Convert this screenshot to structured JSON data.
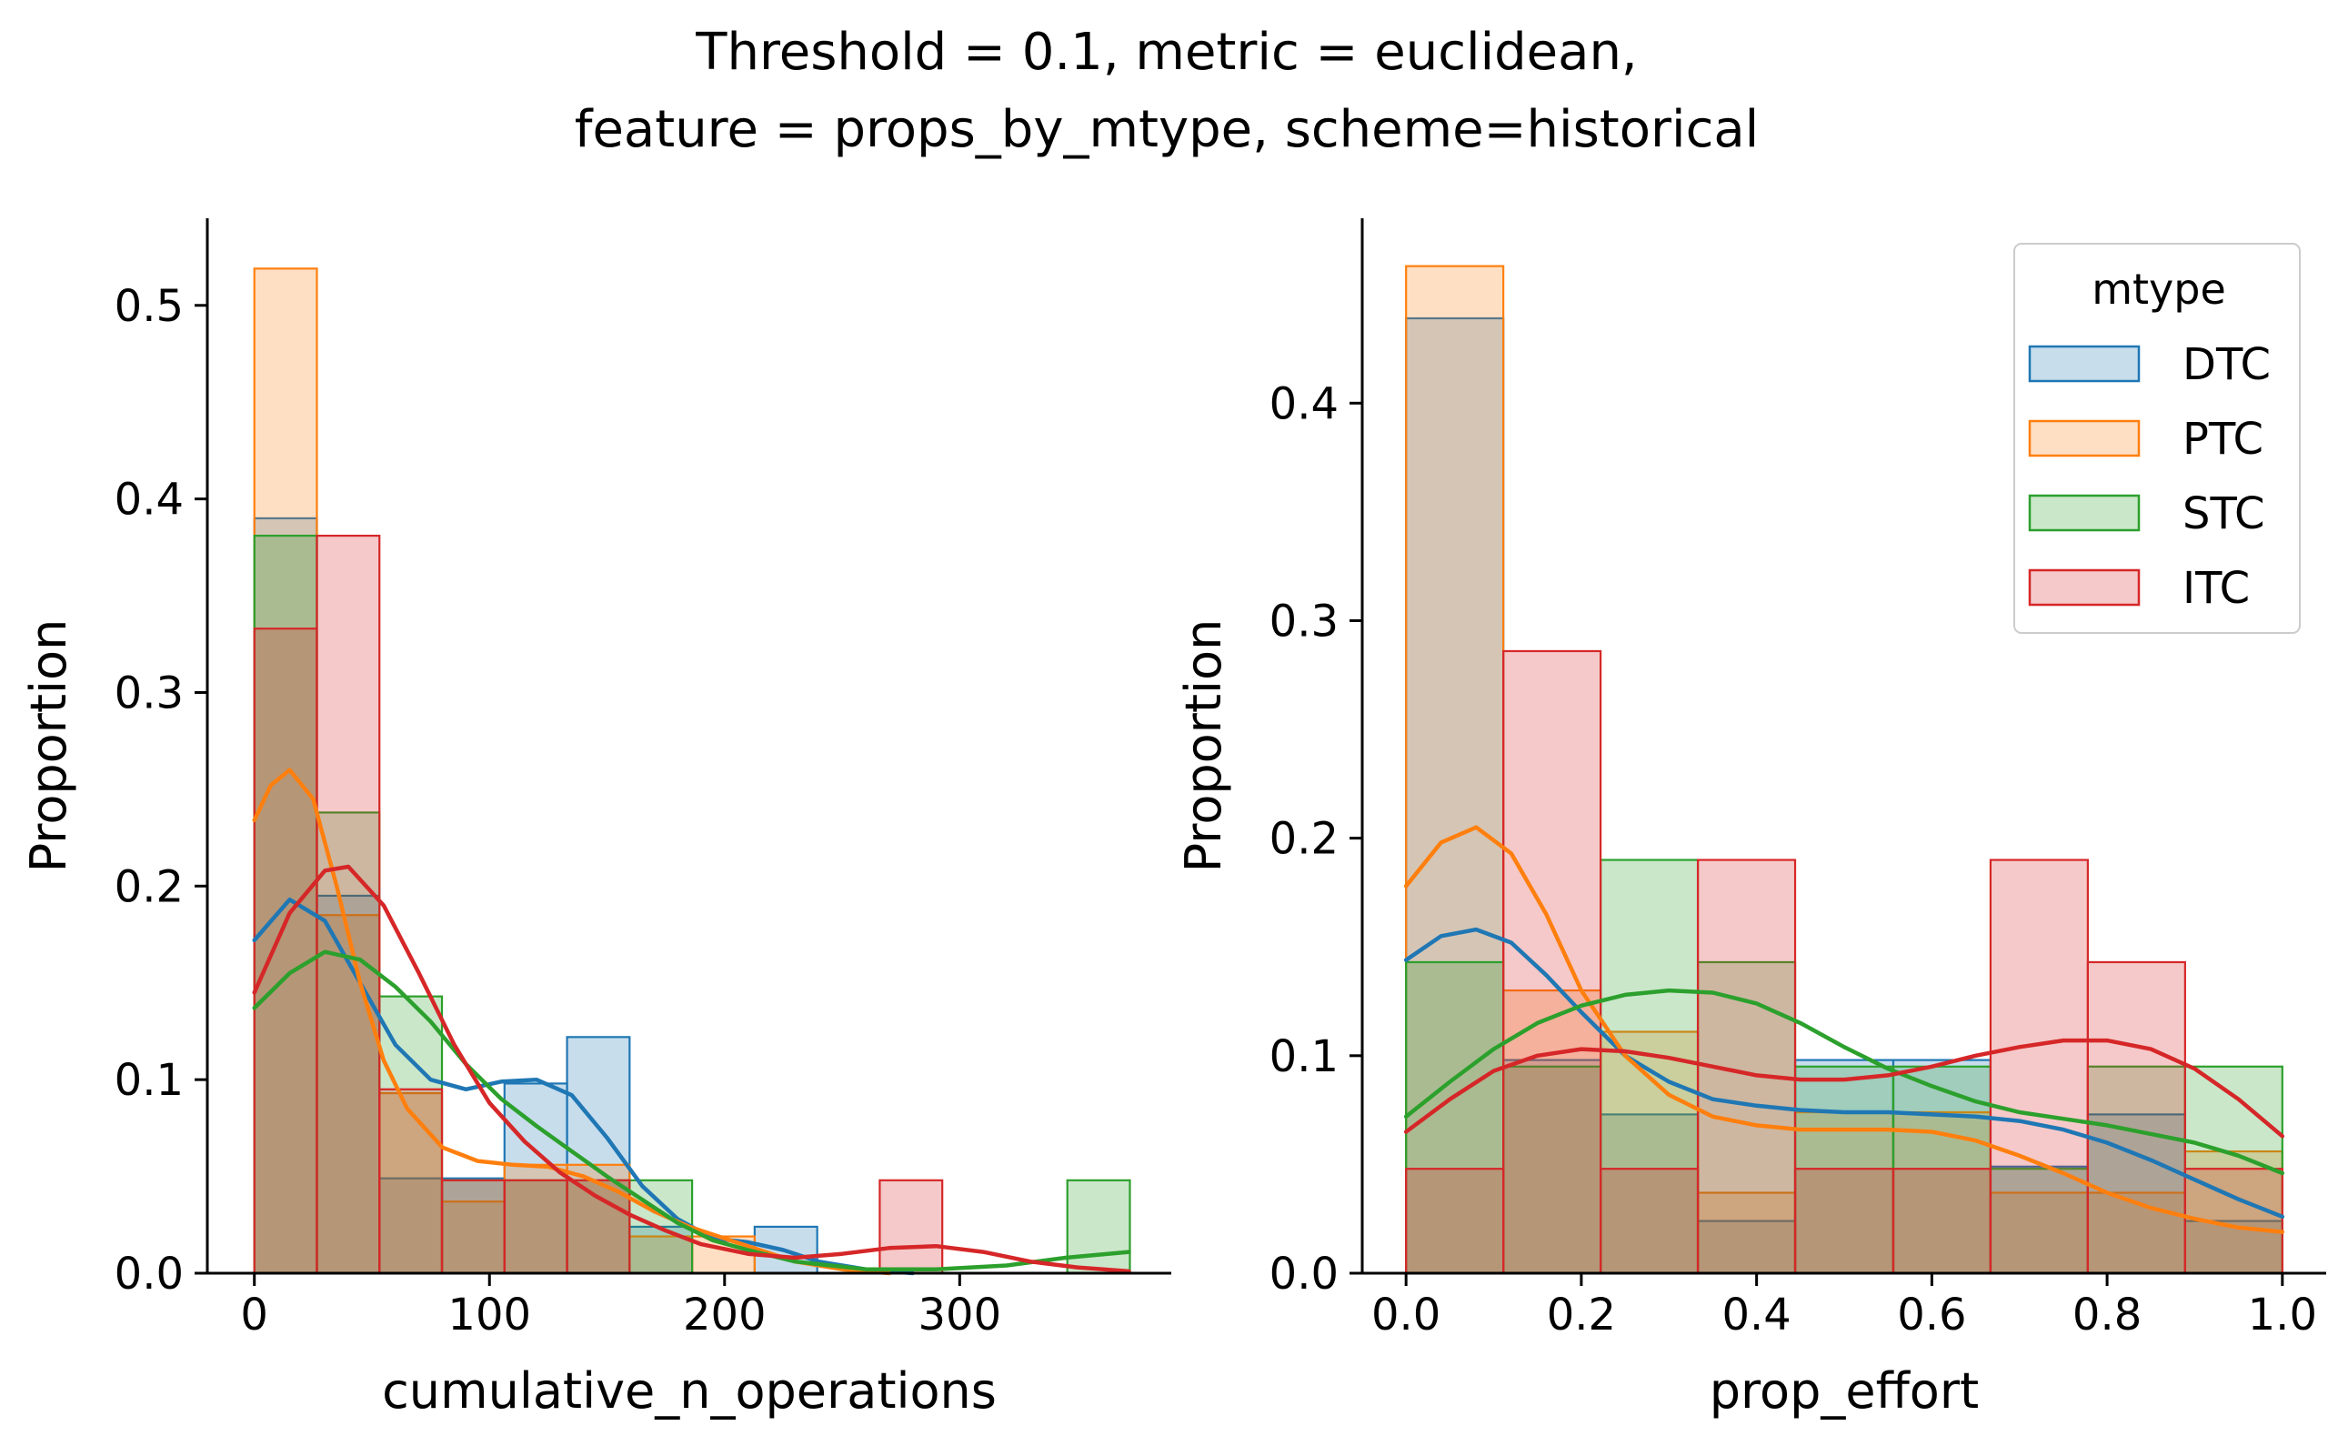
{
  "title": {
    "line1": "Threshold = 0.1, metric = euclidean,",
    "line2": "feature = props_by_mtype, scheme=historical"
  },
  "legend": {
    "title": "mtype",
    "placement": "upper right of right panel",
    "entries": [
      {
        "label": "DTC",
        "color": "#1f77b4"
      },
      {
        "label": "PTC",
        "color": "#ff7f0e"
      },
      {
        "label": "STC",
        "color": "#2ca02c"
      },
      {
        "label": "ITC",
        "color": "#d62728"
      }
    ]
  },
  "chart_data": [
    {
      "type": "histogram",
      "xlabel": "cumulative_n_operations",
      "ylabel": "Proportion",
      "xlim": [
        -20,
        390
      ],
      "ylim": [
        0,
        0.545
      ],
      "xticks": [
        0,
        100,
        200,
        300
      ],
      "xtick_labels": [
        "0",
        "100",
        "200",
        "300"
      ],
      "yticks": [
        0,
        0.1,
        0.2,
        0.3,
        0.4,
        0.5
      ],
      "ytick_labels": [
        "0.0",
        "0.1",
        "0.2",
        "0.3",
        "0.4",
        "0.5"
      ],
      "bin_edges": [
        0,
        26.6,
        53.2,
        79.8,
        106.4,
        133,
        159.6,
        186.2,
        212.8,
        239.4,
        266,
        292.6,
        319.2,
        345.8,
        372.4
      ],
      "series": [
        {
          "name": "DTC",
          "color": "#1f77b4",
          "values": [
            0.39,
            0.195,
            0.049,
            0.049,
            0.098,
            0.122,
            0.024,
            0.0,
            0.024,
            0.0,
            0.0,
            0.0,
            0.0,
            0.0
          ],
          "kde": [
            [
              0,
              0.172
            ],
            [
              15,
              0.193
            ],
            [
              30,
              0.182
            ],
            [
              45,
              0.15
            ],
            [
              60,
              0.118
            ],
            [
              75,
              0.1
            ],
            [
              90,
              0.095
            ],
            [
              105,
              0.099
            ],
            [
              120,
              0.1
            ],
            [
              135,
              0.092
            ],
            [
              150,
              0.07
            ],
            [
              165,
              0.045
            ],
            [
              180,
              0.028
            ],
            [
              195,
              0.018
            ],
            [
              210,
              0.016
            ],
            [
              225,
              0.012
            ],
            [
              240,
              0.006
            ],
            [
              260,
              0.002
            ],
            [
              280,
              0.0
            ]
          ]
        },
        {
          "name": "PTC",
          "color": "#ff7f0e",
          "values": [
            0.519,
            0.185,
            0.093,
            0.037,
            0.056,
            0.056,
            0.019,
            0.019,
            0.0,
            0.0,
            0.0,
            0.0,
            0.0,
            0.0
          ],
          "kde": [
            [
              0,
              0.234
            ],
            [
              7,
              0.252
            ],
            [
              15,
              0.26
            ],
            [
              25,
              0.245
            ],
            [
              35,
              0.2
            ],
            [
              45,
              0.15
            ],
            [
              55,
              0.11
            ],
            [
              65,
              0.085
            ],
            [
              80,
              0.065
            ],
            [
              95,
              0.058
            ],
            [
              110,
              0.056
            ],
            [
              125,
              0.055
            ],
            [
              140,
              0.05
            ],
            [
              155,
              0.042
            ],
            [
              170,
              0.032
            ],
            [
              185,
              0.024
            ],
            [
              200,
              0.018
            ],
            [
              215,
              0.012
            ],
            [
              230,
              0.006
            ],
            [
              250,
              0.002
            ],
            [
              270,
              0.0
            ]
          ]
        },
        {
          "name": "STC",
          "color": "#2ca02c",
          "values": [
            0.381,
            0.238,
            0.143,
            0.048,
            0.048,
            0.048,
            0.048,
            0.0,
            0.0,
            0.0,
            0.0,
            0.0,
            0.0,
            0.048
          ],
          "kde": [
            [
              0,
              0.137
            ],
            [
              15,
              0.155
            ],
            [
              30,
              0.166
            ],
            [
              45,
              0.162
            ],
            [
              60,
              0.148
            ],
            [
              75,
              0.13
            ],
            [
              90,
              0.108
            ],
            [
              105,
              0.09
            ],
            [
              120,
              0.076
            ],
            [
              135,
              0.063
            ],
            [
              150,
              0.05
            ],
            [
              165,
              0.038
            ],
            [
              180,
              0.026
            ],
            [
              195,
              0.017
            ],
            [
              210,
              0.012
            ],
            [
              230,
              0.006
            ],
            [
              260,
              0.002
            ],
            [
              290,
              0.002
            ],
            [
              320,
              0.004
            ],
            [
              345,
              0.008
            ],
            [
              372,
              0.011
            ]
          ]
        },
        {
          "name": "ITC",
          "color": "#d62728",
          "values": [
            0.333,
            0.381,
            0.095,
            0.048,
            0.048,
            0.048,
            0.0,
            0.0,
            0.0,
            0.0,
            0.048,
            0.0,
            0.0,
            0.0
          ],
          "kde": [
            [
              0,
              0.145
            ],
            [
              15,
              0.186
            ],
            [
              30,
              0.208
            ],
            [
              40,
              0.21
            ],
            [
              55,
              0.19
            ],
            [
              70,
              0.155
            ],
            [
              85,
              0.118
            ],
            [
              100,
              0.088
            ],
            [
              115,
              0.068
            ],
            [
              130,
              0.052
            ],
            [
              145,
              0.04
            ],
            [
              160,
              0.03
            ],
            [
              175,
              0.022
            ],
            [
              190,
              0.015
            ],
            [
              210,
              0.01
            ],
            [
              230,
              0.008
            ],
            [
              250,
              0.01
            ],
            [
              270,
              0.013
            ],
            [
              290,
              0.014
            ],
            [
              310,
              0.011
            ],
            [
              330,
              0.006
            ],
            [
              350,
              0.003
            ],
            [
              372,
              0.001
            ]
          ]
        }
      ]
    },
    {
      "type": "histogram",
      "xlabel": "prop_effort",
      "ylabel": "Proportion",
      "xlim": [
        -0.05,
        1.05
      ],
      "ylim": [
        0,
        0.485
      ],
      "xticks": [
        0,
        0.2,
        0.4,
        0.6,
        0.8,
        1.0
      ],
      "xtick_labels": [
        "0.0",
        "0.2",
        "0.4",
        "0.6",
        "0.8",
        "1.0"
      ],
      "yticks": [
        0,
        0.1,
        0.2,
        0.3,
        0.4
      ],
      "ytick_labels": [
        "0.0",
        "0.1",
        "0.2",
        "0.3",
        "0.4"
      ],
      "bin_edges": [
        0,
        0.111,
        0.222,
        0.333,
        0.444,
        0.556,
        0.667,
        0.778,
        0.889,
        1.0
      ],
      "series": [
        {
          "name": "DTC",
          "color": "#1f77b4",
          "values": [
            0.439,
            0.098,
            0.073,
            0.024,
            0.098,
            0.098,
            0.049,
            0.073,
            0.024
          ],
          "kde": [
            [
              0,
              0.144
            ],
            [
              0.04,
              0.155
            ],
            [
              0.08,
              0.158
            ],
            [
              0.12,
              0.152
            ],
            [
              0.16,
              0.137
            ],
            [
              0.2,
              0.12
            ],
            [
              0.25,
              0.1
            ],
            [
              0.3,
              0.088
            ],
            [
              0.35,
              0.08
            ],
            [
              0.4,
              0.077
            ],
            [
              0.45,
              0.075
            ],
            [
              0.5,
              0.074
            ],
            [
              0.55,
              0.074
            ],
            [
              0.6,
              0.073
            ],
            [
              0.65,
              0.072
            ],
            [
              0.7,
              0.07
            ],
            [
              0.75,
              0.066
            ],
            [
              0.8,
              0.06
            ],
            [
              0.85,
              0.052
            ],
            [
              0.9,
              0.043
            ],
            [
              0.95,
              0.034
            ],
            [
              1.0,
              0.026
            ]
          ]
        },
        {
          "name": "PTC",
          "color": "#ff7f0e",
          "values": [
            0.463,
            0.13,
            0.111,
            0.037,
            0.074,
            0.074,
            0.037,
            0.037,
            0.056
          ],
          "kde": [
            [
              0,
              0.178
            ],
            [
              0.04,
              0.198
            ],
            [
              0.08,
              0.205
            ],
            [
              0.12,
              0.193
            ],
            [
              0.16,
              0.165
            ],
            [
              0.2,
              0.13
            ],
            [
              0.25,
              0.1
            ],
            [
              0.3,
              0.082
            ],
            [
              0.35,
              0.072
            ],
            [
              0.4,
              0.068
            ],
            [
              0.45,
              0.066
            ],
            [
              0.5,
              0.066
            ],
            [
              0.55,
              0.066
            ],
            [
              0.6,
              0.065
            ],
            [
              0.65,
              0.061
            ],
            [
              0.7,
              0.054
            ],
            [
              0.75,
              0.046
            ],
            [
              0.8,
              0.037
            ],
            [
              0.85,
              0.03
            ],
            [
              0.9,
              0.025
            ],
            [
              0.95,
              0.021
            ],
            [
              1.0,
              0.019
            ]
          ]
        },
        {
          "name": "STC",
          "color": "#2ca02c",
          "values": [
            0.143,
            0.095,
            0.19,
            0.143,
            0.095,
            0.095,
            0.048,
            0.095,
            0.095
          ],
          "kde": [
            [
              0,
              0.072
            ],
            [
              0.05,
              0.088
            ],
            [
              0.1,
              0.103
            ],
            [
              0.15,
              0.115
            ],
            [
              0.2,
              0.123
            ],
            [
              0.25,
              0.128
            ],
            [
              0.3,
              0.13
            ],
            [
              0.35,
              0.129
            ],
            [
              0.4,
              0.124
            ],
            [
              0.45,
              0.115
            ],
            [
              0.5,
              0.104
            ],
            [
              0.55,
              0.094
            ],
            [
              0.6,
              0.086
            ],
            [
              0.65,
              0.079
            ],
            [
              0.7,
              0.074
            ],
            [
              0.75,
              0.071
            ],
            [
              0.8,
              0.068
            ],
            [
              0.85,
              0.064
            ],
            [
              0.9,
              0.06
            ],
            [
              0.95,
              0.054
            ],
            [
              1.0,
              0.046
            ]
          ]
        },
        {
          "name": "ITC",
          "color": "#d62728",
          "values": [
            0.048,
            0.286,
            0.048,
            0.19,
            0.048,
            0.048,
            0.19,
            0.143,
            0.048
          ],
          "kde": [
            [
              0,
              0.065
            ],
            [
              0.05,
              0.08
            ],
            [
              0.1,
              0.093
            ],
            [
              0.15,
              0.1
            ],
            [
              0.2,
              0.103
            ],
            [
              0.25,
              0.102
            ],
            [
              0.3,
              0.099
            ],
            [
              0.35,
              0.095
            ],
            [
              0.4,
              0.091
            ],
            [
              0.45,
              0.089
            ],
            [
              0.5,
              0.089
            ],
            [
              0.55,
              0.091
            ],
            [
              0.6,
              0.095
            ],
            [
              0.65,
              0.1
            ],
            [
              0.7,
              0.104
            ],
            [
              0.75,
              0.107
            ],
            [
              0.8,
              0.107
            ],
            [
              0.85,
              0.103
            ],
            [
              0.9,
              0.094
            ],
            [
              0.95,
              0.08
            ],
            [
              1.0,
              0.063
            ]
          ]
        }
      ]
    }
  ]
}
